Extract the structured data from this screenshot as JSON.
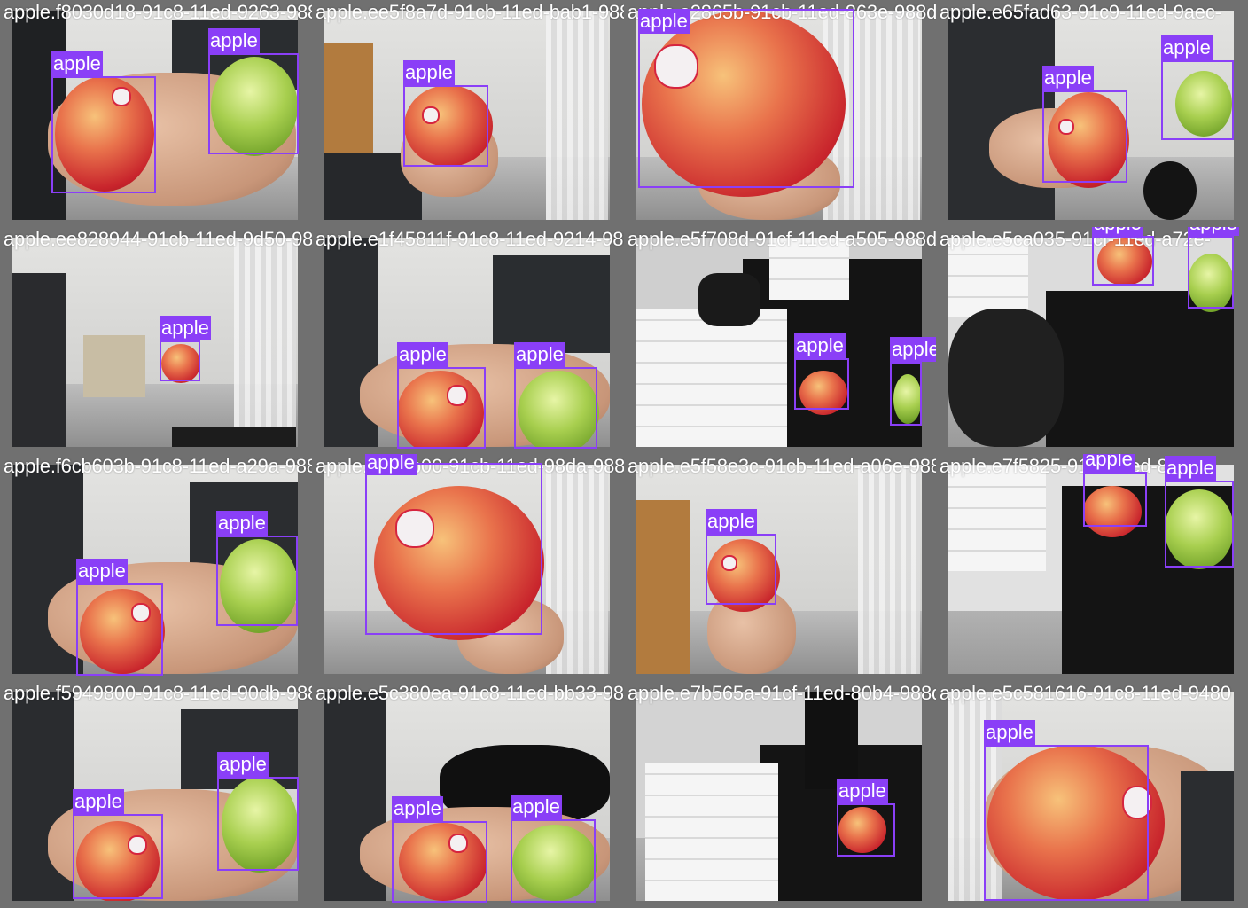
{
  "grid": {
    "tiles": [
      {
        "filename": "apple.f8030d18-91c8-11ed-9263-988d46a5f58",
        "boxes": [
          {
            "label": "apple"
          },
          {
            "label": "apple"
          }
        ]
      },
      {
        "filename": "apple.ee5f8a7d-91cb-11ed-bab1-988d46a5f58",
        "boxes": [
          {
            "label": "apple"
          }
        ]
      },
      {
        "filename": "apple.e2865b-91cb-11ed-863e-988d46a5f58",
        "boxes": [
          {
            "label": "apple"
          }
        ]
      },
      {
        "filename": "apple.e65fad63-91c9-11ed-9aec-",
        "boxes": [
          {
            "label": "apple"
          },
          {
            "label": "apple"
          }
        ]
      },
      {
        "filename": "apple.ee828944-91cb-11ed-9d50-988d46a5f58",
        "boxes": [
          {
            "label": "apple"
          }
        ]
      },
      {
        "filename": "apple.e1f45811f-91c8-11ed-9214-988d46a5f58",
        "boxes": [
          {
            "label": "apple"
          },
          {
            "label": "apple"
          }
        ]
      },
      {
        "filename": "apple.e5f708d-91cf-11ed-a505-988d46a5f58",
        "boxes": [
          {
            "label": "apple"
          },
          {
            "label": "apple"
          }
        ]
      },
      {
        "filename": "apple.e5ca035-91cf-11ed-a72e-",
        "boxes": [
          {
            "label": "apple"
          },
          {
            "label": "apple"
          }
        ]
      },
      {
        "filename": "apple.f6cb603b-91c8-11ed-a29a-988d46a5f58",
        "boxes": [
          {
            "label": "apple"
          },
          {
            "label": "apple"
          }
        ]
      },
      {
        "filename": "apple.e5b6b00-91cb-11ed-98da-988d46a5f58",
        "boxes": [
          {
            "label": "apple"
          }
        ]
      },
      {
        "filename": "apple.e5f58e3c-91cb-11ed-a06e-988d46a5f58",
        "boxes": [
          {
            "label": "apple"
          }
        ]
      },
      {
        "filename": "apple.e7f5825-91cf-11ed-89-",
        "boxes": [
          {
            "label": "apple"
          },
          {
            "label": "apple"
          }
        ]
      },
      {
        "filename": "apple.f5949800-91c8-11ed-90db-988d46a5f58",
        "boxes": [
          {
            "label": "apple"
          },
          {
            "label": "apple"
          }
        ]
      },
      {
        "filename": "apple.e5c380ea-91c8-11ed-bb33-988d46a5f58",
        "boxes": [
          {
            "label": "apple"
          },
          {
            "label": "apple"
          }
        ]
      },
      {
        "filename": "apple.e7b565a-91cf-11ed-80b4-988d46a5f58",
        "boxes": [
          {
            "label": "apple"
          }
        ]
      },
      {
        "filename": "apple.e5c581616-91c8-11ed-9480",
        "boxes": [
          {
            "label": "apple"
          }
        ]
      }
    ]
  },
  "colors": {
    "bbox": "#8a3ff7",
    "tile_border": "#707070",
    "label_text": "#ffffff"
  }
}
